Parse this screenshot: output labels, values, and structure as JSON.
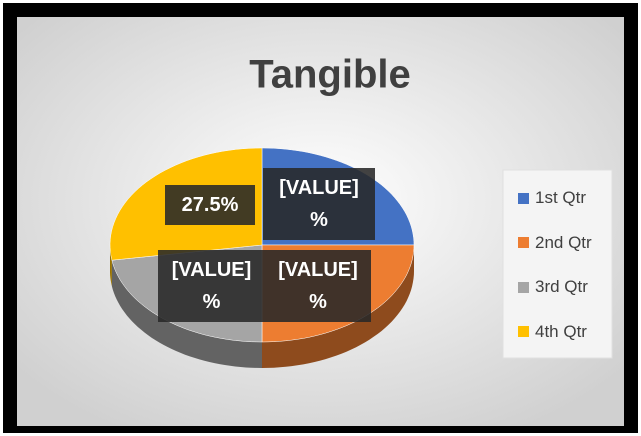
{
  "chart_data": {
    "type": "pie",
    "title": "Tangible",
    "categories": [
      "1st Qtr",
      "2nd Qtr",
      "3rd Qtr",
      "4th Qtr"
    ],
    "values": [
      25,
      25,
      22.5,
      27.5
    ],
    "value_labels": [
      "[VALUE]\n%",
      "[VALUE]\n%",
      "[VALUE]\n%",
      "27.5%"
    ],
    "colors": [
      "#4472c4",
      "#ed7d31",
      "#a5a5a5",
      "#ffc000"
    ],
    "legend": "right"
  }
}
